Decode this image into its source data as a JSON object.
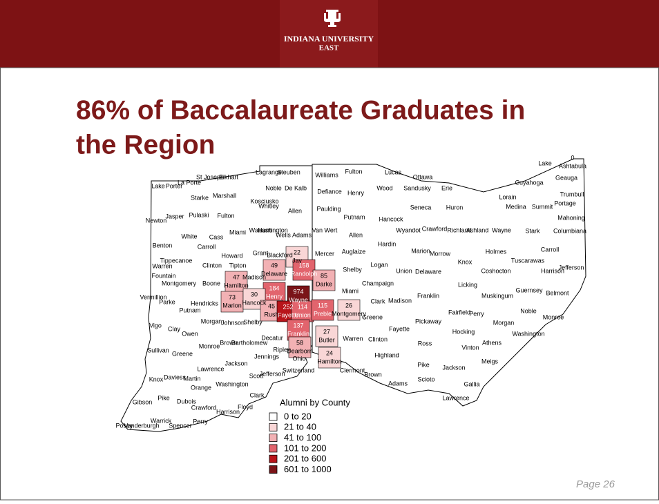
{
  "header": {
    "institution": "INDIANA UNIVERSITY",
    "campus": "EAST"
  },
  "title_lines": [
    "86% of Baccalaureate Graduates in",
    "the Region"
  ],
  "map": {
    "counties": [
      {
        "name": "Lake"
      },
      {
        "name": "Porter"
      },
      {
        "name": "La Porte"
      },
      {
        "name": "St Joseph"
      },
      {
        "name": "Elkhart"
      },
      {
        "name": "Lagrange"
      },
      {
        "name": "Steuben"
      },
      {
        "name": "Noble"
      },
      {
        "name": "De Kalb"
      },
      {
        "name": "Starke"
      },
      {
        "name": "Marshall"
      },
      {
        "name": "Kosciusko"
      },
      {
        "name": "Whitley"
      },
      {
        "name": "Allen"
      },
      {
        "name": "Newton"
      },
      {
        "name": "Jasper"
      },
      {
        "name": "Pulaski"
      },
      {
        "name": "Fulton"
      },
      {
        "name": "Wabash"
      },
      {
        "name": "Huntington"
      },
      {
        "name": "Miami"
      },
      {
        "name": "Wells"
      },
      {
        "name": "Adams"
      },
      {
        "name": "White"
      },
      {
        "name": "Cass"
      },
      {
        "name": "Benton"
      },
      {
        "name": "Carroll"
      },
      {
        "name": "Grant"
      },
      {
        "name": "Blackford"
      },
      {
        "name": "Jay",
        "value": 22,
        "color": "#f9d6d6"
      },
      {
        "name": "Howard"
      },
      {
        "name": "Tippecanoe"
      },
      {
        "name": "Clinton"
      },
      {
        "name": "Tipton"
      },
      {
        "name": "Warren"
      },
      {
        "name": "Fountain"
      },
      {
        "name": "Madison"
      },
      {
        "name": "Montgomery"
      },
      {
        "name": "Boone"
      },
      {
        "name": "Hamilton",
        "value": 47,
        "color": "#f2b1b4"
      },
      {
        "name": "Delaware",
        "value": 49,
        "color": "#f2b1b4"
      },
      {
        "name": "Randolph",
        "value": 158,
        "color": "#e2646d"
      },
      {
        "name": "Henry",
        "value": 184,
        "color": "#e2646d"
      },
      {
        "name": "Wayne",
        "value": 974,
        "color": "#7a1418"
      },
      {
        "name": "Vermillion"
      },
      {
        "name": "Parke"
      },
      {
        "name": "Hendricks"
      },
      {
        "name": "Marion",
        "value": 73,
        "color": "#f2b1b4"
      },
      {
        "name": "Hancock",
        "value": 30,
        "color": "#f9d6d6"
      },
      {
        "name": "Putnam"
      },
      {
        "name": "Vigo"
      },
      {
        "name": "Clay"
      },
      {
        "name": "Morgan"
      },
      {
        "name": "Johnson"
      },
      {
        "name": "Shelby"
      },
      {
        "name": "Rush",
        "value": 45,
        "color": "#f2b1b4"
      },
      {
        "name": "Fayette",
        "value": 252,
        "color": "#b8141a"
      },
      {
        "name": "Union",
        "value": 114,
        "color": "#e2646d"
      },
      {
        "name": "Franklin",
        "value": 137,
        "color": "#e2646d"
      },
      {
        "name": "Owen"
      },
      {
        "name": "Sullivan"
      },
      {
        "name": "Greene"
      },
      {
        "name": "Monroe"
      },
      {
        "name": "Brown"
      },
      {
        "name": "Bartholomew"
      },
      {
        "name": "Decatur"
      },
      {
        "name": "Dearborn",
        "value": 58,
        "color": "#f2b1b4"
      },
      {
        "name": "Ripley"
      },
      {
        "name": "Ohio"
      },
      {
        "name": "Jennings"
      },
      {
        "name": "Jackson"
      },
      {
        "name": "Lawrence"
      },
      {
        "name": "Switzerland"
      },
      {
        "name": "Jefferson"
      },
      {
        "name": "Scott"
      },
      {
        "name": "Knox"
      },
      {
        "name": "Daviess"
      },
      {
        "name": "Martin"
      },
      {
        "name": "Washington"
      },
      {
        "name": "Orange"
      },
      {
        "name": "Clark"
      },
      {
        "name": "Gibson"
      },
      {
        "name": "Pike"
      },
      {
        "name": "Dubois"
      },
      {
        "name": "Crawford"
      },
      {
        "name": "Floyd"
      },
      {
        "name": "Harrison"
      },
      {
        "name": "Posey"
      },
      {
        "name": "Vanderburgh"
      },
      {
        "name": "Warrick"
      },
      {
        "name": "Spencer"
      },
      {
        "name": "Perry"
      },
      {
        "name": "Williams"
      },
      {
        "name": "Fulton"
      },
      {
        "name": "Lucas"
      },
      {
        "name": "Ottawa"
      },
      {
        "name": "Lake"
      },
      {
        "name": "Ashtabula",
        "value": 0
      },
      {
        "name": "Geauga"
      },
      {
        "name": "Cuyahoga"
      },
      {
        "name": "Defiance"
      },
      {
        "name": "Henry"
      },
      {
        "name": "Wood"
      },
      {
        "name": "Sandusky"
      },
      {
        "name": "Erie"
      },
      {
        "name": "Lorain"
      },
      {
        "name": "Trumbull"
      },
      {
        "name": "Medina"
      },
      {
        "name": "Summit"
      },
      {
        "name": "Portage"
      },
      {
        "name": "Paulding"
      },
      {
        "name": "Putnam"
      },
      {
        "name": "Hancock"
      },
      {
        "name": "Seneca"
      },
      {
        "name": "Huron"
      },
      {
        "name": "Mahoning"
      },
      {
        "name": "Van Wert"
      },
      {
        "name": "Allen"
      },
      {
        "name": "Wyandot"
      },
      {
        "name": "Crawford"
      },
      {
        "name": "Richland"
      },
      {
        "name": "Ashland"
      },
      {
        "name": "Wayne"
      },
      {
        "name": "Stark"
      },
      {
        "name": "Columbiana"
      },
      {
        "name": "Hardin"
      },
      {
        "name": "Marion"
      },
      {
        "name": "Morrow"
      },
      {
        "name": "Holmes"
      },
      {
        "name": "Carroll"
      },
      {
        "name": "Mercer"
      },
      {
        "name": "Auglaize"
      },
      {
        "name": "Knox"
      },
      {
        "name": "Tuscarawas"
      },
      {
        "name": "Jefferson"
      },
      {
        "name": "Shelby"
      },
      {
        "name": "Logan"
      },
      {
        "name": "Union"
      },
      {
        "name": "Delaware"
      },
      {
        "name": "Coshocton"
      },
      {
        "name": "Harrison"
      },
      {
        "name": "Darke",
        "value": 85,
        "color": "#f2b1b4"
      },
      {
        "name": "Champaign"
      },
      {
        "name": "Miami"
      },
      {
        "name": "Licking"
      },
      {
        "name": "Guernsey"
      },
      {
        "name": "Belmont"
      },
      {
        "name": "Clark"
      },
      {
        "name": "Madison"
      },
      {
        "name": "Franklin"
      },
      {
        "name": "Muskingum"
      },
      {
        "name": "Montgomery",
        "value": 26,
        "color": "#f9d6d6"
      },
      {
        "name": "Preble",
        "value": 115,
        "color": "#e2646d"
      },
      {
        "name": "Greene"
      },
      {
        "name": "Noble"
      },
      {
        "name": "Monroe"
      },
      {
        "name": "Fayette"
      },
      {
        "name": "Pickaway"
      },
      {
        "name": "Fairfield"
      },
      {
        "name": "Perry"
      },
      {
        "name": "Morgan"
      },
      {
        "name": "Hocking"
      },
      {
        "name": "Washington"
      },
      {
        "name": "Butler",
        "value": 27,
        "color": "#f9d6d6"
      },
      {
        "name": "Warren"
      },
      {
        "name": "Clinton"
      },
      {
        "name": "Ross"
      },
      {
        "name": "Vinton"
      },
      {
        "name": "Athens"
      },
      {
        "name": "Hamilton",
        "value": 24,
        "color": "#f9d6d6"
      },
      {
        "name": "Highland"
      },
      {
        "name": "Meigs"
      },
      {
        "name": "Clermont"
      },
      {
        "name": "Brown"
      },
      {
        "name": "Pike"
      },
      {
        "name": "Jackson"
      },
      {
        "name": "Adams"
      },
      {
        "name": "Scioto"
      },
      {
        "name": "Gallia"
      },
      {
        "name": "Lawrence"
      }
    ],
    "legend": {
      "title": "Alumni by County",
      "bins": [
        {
          "label": "0 to 20",
          "color": "#ffffff"
        },
        {
          "label": "21 to 40",
          "color": "#f9d6d6"
        },
        {
          "label": "41 to 100",
          "color": "#f2b1b4"
        },
        {
          "label": "101 to 200",
          "color": "#e2646d"
        },
        {
          "label": "201 to 600",
          "color": "#b8141a"
        },
        {
          "label": "601 to 1000",
          "color": "#7a1418"
        }
      ]
    }
  },
  "page": "Page 26"
}
